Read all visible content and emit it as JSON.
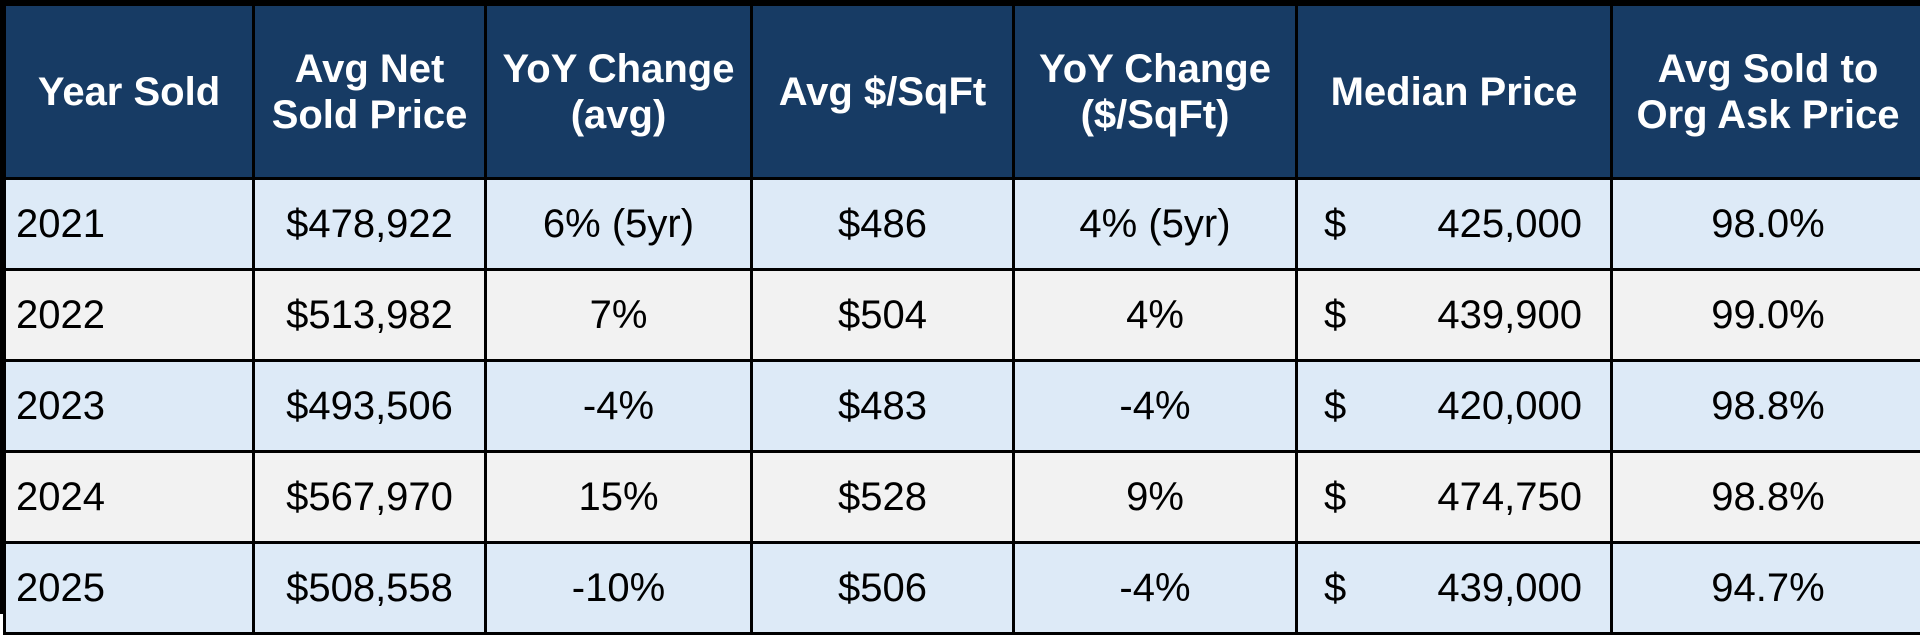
{
  "chart_data": {
    "type": "table",
    "columns": [
      "Year Sold",
      "Avg Net Sold Price",
      "YoY Change (avg)",
      "Avg $/SqFt",
      "YoY Change ($/SqFt)",
      "Median Price",
      "Avg Sold to Org Ask Price"
    ],
    "header_lines": [
      [
        "Year Sold"
      ],
      [
        "Avg Net",
        "Sold Price"
      ],
      [
        "YoY Change",
        "(avg)"
      ],
      [
        "Avg $/SqFt"
      ],
      [
        "YoY Change",
        "($/SqFt)"
      ],
      [
        "Median Price"
      ],
      [
        "Avg Sold to",
        "Org Ask Price"
      ]
    ],
    "rows": [
      {
        "year": "2021",
        "avg_net_sold_price": "$478,922",
        "yoy_change_avg": "6% (5yr)",
        "avg_per_sqft": "$486",
        "yoy_change_per_sqft": "4% (5yr)",
        "median_currency": "$",
        "median_price": "425,000",
        "avg_sold_to_ask": "98.0%"
      },
      {
        "year": "2022",
        "avg_net_sold_price": "$513,982",
        "yoy_change_avg": "7%",
        "avg_per_sqft": "$504",
        "yoy_change_per_sqft": "4%",
        "median_currency": "$",
        "median_price": "439,900",
        "avg_sold_to_ask": "99.0%"
      },
      {
        "year": "2023",
        "avg_net_sold_price": "$493,506",
        "yoy_change_avg": "-4%",
        "avg_per_sqft": "$483",
        "yoy_change_per_sqft": "-4%",
        "median_currency": "$",
        "median_price": "420,000",
        "avg_sold_to_ask": "98.8%"
      },
      {
        "year": "2024",
        "avg_net_sold_price": "$567,970",
        "yoy_change_avg": "15%",
        "avg_per_sqft": "$528",
        "yoy_change_per_sqft": "9%",
        "median_currency": "$",
        "median_price": "474,750",
        "avg_sold_to_ask": "98.8%"
      },
      {
        "year": "2025",
        "avg_net_sold_price": "$508,558",
        "yoy_change_avg": "-10%",
        "avg_per_sqft": "$506",
        "yoy_change_per_sqft": "-4%",
        "median_currency": "$",
        "median_price": "439,000",
        "avg_sold_to_ask": "94.7%"
      }
    ]
  },
  "colors": {
    "header_bg": "#173b64",
    "header_text": "#ffffff",
    "row_odd_bg": "#ddeaf7",
    "row_even_bg": "#f2f2f2",
    "grid": "#000000"
  }
}
